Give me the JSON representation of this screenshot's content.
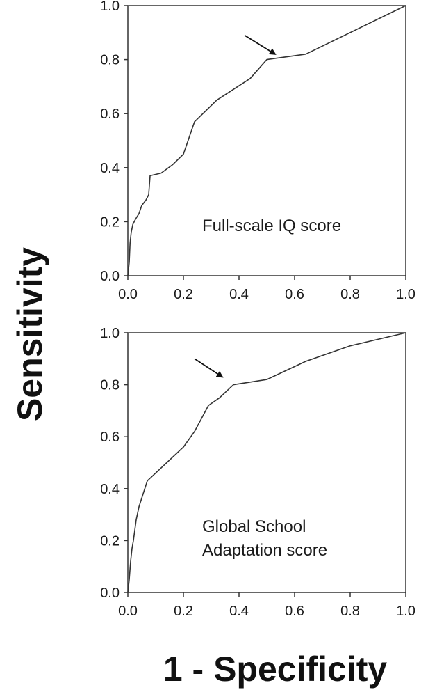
{
  "figure": {
    "ylabel": "Sensitivity",
    "xlabel": "1 - Specificity"
  },
  "chart_data": [
    {
      "type": "line",
      "annotation": "Full-scale IQ score",
      "xlim": [
        0,
        1
      ],
      "ylim": [
        0,
        1
      ],
      "xticks": [
        "0.0",
        "0.2",
        "0.4",
        "0.6",
        "0.8",
        "1.0"
      ],
      "yticks": [
        "0.0",
        "0.2",
        "0.4",
        "0.6",
        "0.8",
        "1.0"
      ],
      "grid": false,
      "series": [
        {
          "x": [
            0.0,
            0.005,
            0.008,
            0.012,
            0.018,
            0.028,
            0.04,
            0.05,
            0.065,
            0.075,
            0.08,
            0.12,
            0.16,
            0.2,
            0.24,
            0.32,
            0.38,
            0.44,
            0.5,
            0.64,
            1.0
          ],
          "y": [
            0.0,
            0.05,
            0.12,
            0.16,
            0.19,
            0.21,
            0.23,
            0.26,
            0.28,
            0.3,
            0.37,
            0.38,
            0.41,
            0.45,
            0.57,
            0.65,
            0.69,
            0.73,
            0.8,
            0.82,
            1.0
          ]
        }
      ],
      "arrow": {
        "from": [
          0.42,
          0.89
        ],
        "to": [
          0.53,
          0.82
        ]
      },
      "colors": {
        "line": "#333333",
        "axes": "#333333"
      }
    },
    {
      "type": "line",
      "annotation": [
        "Global School",
        "Adaptation score"
      ],
      "xlim": [
        0,
        1
      ],
      "ylim": [
        0,
        1
      ],
      "xticks": [
        "0.0",
        "0.2",
        "0.4",
        "0.6",
        "0.8",
        "1.0"
      ],
      "yticks": [
        "0.0",
        "0.2",
        "0.4",
        "0.6",
        "0.8",
        "1.0"
      ],
      "grid": false,
      "series": [
        {
          "x": [
            0.0,
            0.005,
            0.01,
            0.015,
            0.02,
            0.03,
            0.04,
            0.055,
            0.07,
            0.11,
            0.16,
            0.2,
            0.24,
            0.29,
            0.33,
            0.38,
            0.5,
            0.64,
            0.8,
            1.0
          ],
          "y": [
            0.0,
            0.05,
            0.12,
            0.17,
            0.2,
            0.28,
            0.33,
            0.38,
            0.43,
            0.47,
            0.52,
            0.56,
            0.62,
            0.72,
            0.75,
            0.8,
            0.82,
            0.89,
            0.95,
            1.0
          ]
        }
      ],
      "arrow": {
        "from": [
          0.24,
          0.9
        ],
        "to": [
          0.34,
          0.83
        ]
      },
      "colors": {
        "line": "#333333",
        "axes": "#333333"
      }
    }
  ]
}
